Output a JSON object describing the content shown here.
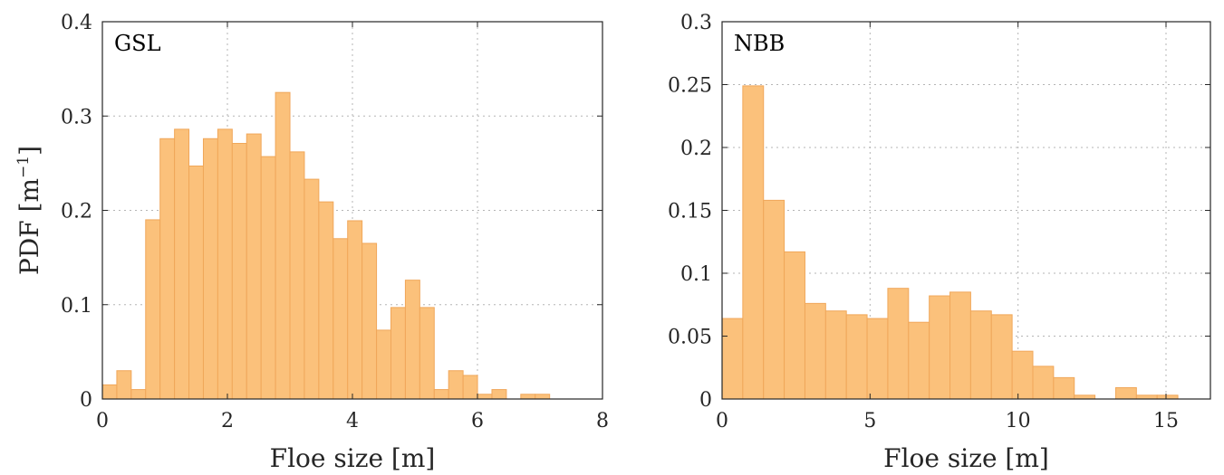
{
  "chart_data": [
    {
      "type": "bar",
      "panel_label": "GSL",
      "xlabel": "Floe size [m]",
      "ylabel": "PDF [m",
      "ylabel_exponent": "−1",
      "ylabel_suffix": "]",
      "xlim": [
        0,
        8
      ],
      "ylim": [
        0,
        0.4
      ],
      "xticks": [
        "0",
        "2",
        "4",
        "6",
        "8"
      ],
      "yticks": [
        "0",
        "0.1",
        "0.2",
        "0.3",
        "0.4"
      ],
      "grid": true,
      "bin_width": 0.2308,
      "bin_start": 0.0,
      "values": [
        0.015,
        0.03,
        0.01,
        0.19,
        0.276,
        0.286,
        0.247,
        0.276,
        0.286,
        0.271,
        0.281,
        0.257,
        0.325,
        0.262,
        0.233,
        0.209,
        0.17,
        0.189,
        0.165,
        0.073,
        0.097,
        0.126,
        0.097,
        0.01,
        0.03,
        0.025,
        0.005,
        0.01,
        0.0,
        0.005,
        0.005
      ],
      "bar_color": "#fbc17b",
      "edge_color": "#f0a75a"
    },
    {
      "type": "bar",
      "panel_label": "NBB",
      "xlabel": "Floe size [m]",
      "xlim": [
        0,
        16.5
      ],
      "ylim": [
        0,
        0.3
      ],
      "xticks": [
        "0",
        "5",
        "10",
        "15"
      ],
      "yticks": [
        "0",
        "0.05",
        "0.1",
        "0.15",
        "0.2",
        "0.25",
        "0.3"
      ],
      "grid": true,
      "bin_width": 0.7,
      "bin_start": 0.0,
      "values": [
        0.064,
        0.249,
        0.158,
        0.117,
        0.076,
        0.07,
        0.067,
        0.064,
        0.088,
        0.061,
        0.082,
        0.085,
        0.07,
        0.067,
        0.038,
        0.026,
        0.017,
        0.003,
        0.0,
        0.009,
        0.003,
        0.003
      ],
      "bar_color": "#fbc17b",
      "edge_color": "#f0a75a"
    }
  ]
}
